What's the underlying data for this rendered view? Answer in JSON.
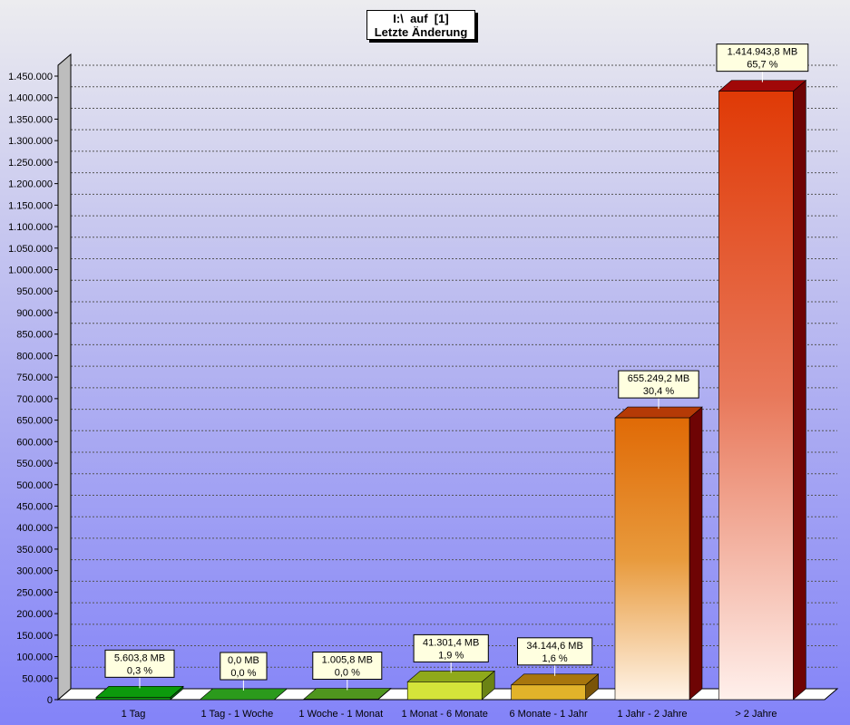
{
  "chart_data": {
    "type": "bar",
    "title": "I:\\  auf  [1]",
    "subtitle": "Letzte Änderung",
    "categories": [
      "1 Tag",
      "1 Tag - 1 Woche",
      "1 Woche - 1 Monat",
      "1 Monat - 6 Monate",
      "6 Monate - 1 Jahr",
      "1 Jahr - 2 Jahre",
      "> 2 Jahre"
    ],
    "values": [
      5603.8,
      0.0,
      1005.8,
      41301.4,
      34144.6,
      655249.2,
      1414943.8
    ],
    "data_labels": [
      {
        "size": "5.603,8 MB",
        "percent": "0,3 %"
      },
      {
        "size": "0,0 MB",
        "percent": "0,0 %"
      },
      {
        "size": "1.005,8 MB",
        "percent": "0,0 %"
      },
      {
        "size": "41.301,4 MB",
        "percent": "1,9 %"
      },
      {
        "size": "34.144,6 MB",
        "percent": "1,6 %"
      },
      {
        "size": "655.249,2 MB",
        "percent": "30,4 %"
      },
      {
        "size": "1.414.943,8 MB",
        "percent": "65,7 %"
      }
    ],
    "bar_colors": [
      {
        "front": "#129312",
        "top": "#0c9a0c",
        "side": "#0a6b0a"
      },
      {
        "front": "#2a8f1b",
        "top": "#2b9a1c",
        "side": "#1e6a14"
      },
      {
        "front": "#4a8d1c",
        "top": "#4f961e",
        "side": "#356614"
      },
      {
        "front": "#d4e43a",
        "top": "#8fa91a",
        "side": "#6b8314"
      },
      {
        "front": "#e2b32a",
        "top": "#a8760d",
        "side": "#7a5408"
      },
      {
        "front": "gradient-orange",
        "top": "#b53a06",
        "side": "#6e0404"
      },
      {
        "front": "gradient-red",
        "top": "#a00808",
        "side": "#6e0404"
      }
    ],
    "yticks": [
      "0",
      "50.000",
      "100.000",
      "150.000",
      "200.000",
      "250.000",
      "300.000",
      "350.000",
      "400.000",
      "450.000",
      "500.000",
      "550.000",
      "600.000",
      "650.000",
      "700.000",
      "750.000",
      "800.000",
      "850.000",
      "900.000",
      "950.000",
      "1.000.000",
      "1.050.000",
      "1.100.000",
      "1.150.000",
      "1.200.000",
      "1.250.000",
      "1.300.000",
      "1.350.000",
      "1.400.000",
      "1.450.000"
    ],
    "ylim": [
      0,
      1450000
    ],
    "grid": true,
    "legend": "none"
  }
}
